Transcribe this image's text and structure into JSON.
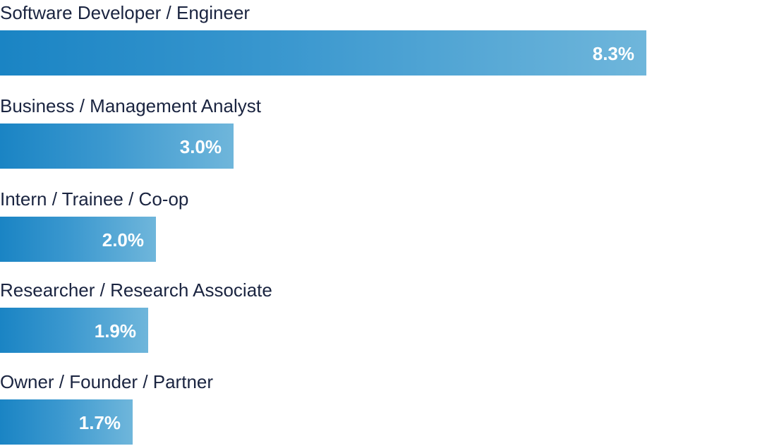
{
  "chart_data": {
    "type": "bar",
    "orientation": "horizontal",
    "categories": [
      "Software Developer / Engineer",
      "Business / Management Analyst",
      "Intern / Trainee / Co-op",
      "Researcher / Research Associate",
      "Owner / Founder / Partner"
    ],
    "values": [
      8.3,
      3.0,
      2.0,
      1.9,
      1.7
    ],
    "value_labels": [
      "8.3%",
      "3.0%",
      "2.0%",
      "1.9%",
      "1.7%"
    ],
    "unit": "%",
    "xlim": [
      0,
      10
    ],
    "grid": false,
    "legend": "none",
    "bar_color_start": "#1a84c4",
    "bar_color_end": "#6fb6db",
    "label_color": "#1a2440",
    "value_label_color": "#ffffff"
  }
}
